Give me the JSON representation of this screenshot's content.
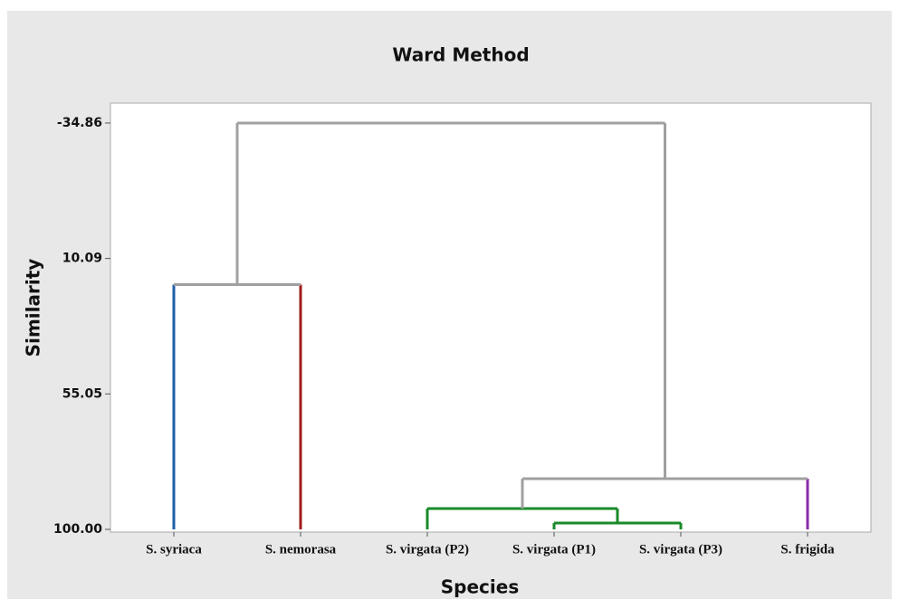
{
  "chart_data": {
    "type": "dendrogram",
    "title": "Ward Method",
    "x_label": "Species",
    "y_label": "Similarity",
    "categories": [
      "S. syriaca",
      "S. nemorasa",
      "S. virgata (P2)",
      "S. virgata (P1)",
      "S. virgata (P3)",
      "S. frigida"
    ],
    "leaf_colors": [
      "#1f5fa8",
      "#a01c1c",
      "#1a8a2a",
      "#1a8a2a",
      "#1a8a2a",
      "#8a2aa8"
    ],
    "leaf_height": 100,
    "merges": [
      {
        "left": 3,
        "right": 4,
        "height": 97.9,
        "color": "#1a8a2a"
      },
      {
        "left": 2,
        "right": 6,
        "height": 93.1,
        "color": "#1a8a2a"
      },
      {
        "left": 0,
        "right": 1,
        "height": 18.78,
        "color": "#a0a0a0"
      },
      {
        "left": 7,
        "right": 5,
        "height": 83.2,
        "color": "#a0a0a0"
      },
      {
        "left": 8,
        "right": 9,
        "height": -34.86,
        "color": "#a0a0a0"
      }
    ],
    "ylim": [
      100.9,
      -41.45
    ],
    "yticks": [
      {
        "value": -34.86,
        "label": "-34.86"
      },
      {
        "value": 10.09,
        "label": "10.09"
      },
      {
        "value": 55.05,
        "label": "55.05"
      },
      {
        "value": 100,
        "label": "100.00"
      }
    ]
  }
}
